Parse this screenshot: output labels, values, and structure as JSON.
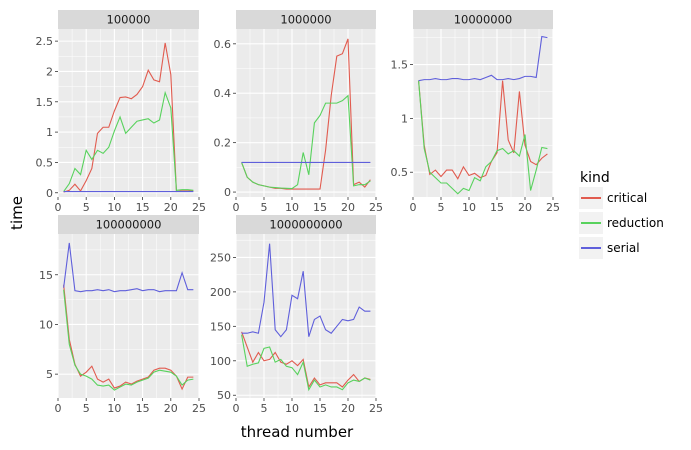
{
  "chart_data": {
    "type": "line",
    "xlabel": "thread number",
    "ylabel": "time",
    "legend": {
      "title": "kind",
      "position": "right",
      "entries": [
        {
          "name": "critical",
          "color": "#e15b4f"
        },
        {
          "name": "reduction",
          "color": "#58d25d"
        },
        {
          "name": "serial",
          "color": "#5f5fdb"
        }
      ]
    },
    "x_ticks": [
      0,
      5,
      10,
      15,
      20,
      25
    ],
    "xlim": [
      0,
      25
    ],
    "panels": [
      {
        "title": "100000",
        "ylim": [
          -0.07,
          2.7
        ],
        "y_ticks": [
          0,
          0.5,
          1,
          1.5,
          2,
          2.5
        ],
        "y_tick_labels": [
          "0",
          "0.5",
          "1",
          "1.5",
          "2",
          "2.5"
        ],
        "series": [
          {
            "name": "critical",
            "x": [
              1,
              2,
              3,
              4,
              5,
              6,
              7,
              8,
              9,
              10,
              11,
              12,
              13,
              14,
              15,
              16,
              17,
              18,
              19,
              20,
              21,
              22,
              23,
              24
            ],
            "y": [
              0.01,
              0.04,
              0.14,
              0.03,
              0.2,
              0.4,
              0.98,
              1.08,
              1.08,
              1.35,
              1.57,
              1.58,
              1.55,
              1.62,
              1.75,
              2.02,
              1.86,
              1.83,
              2.47,
              1.95,
              0.02,
              0.03,
              0.03,
              0.03
            ]
          },
          {
            "name": "reduction",
            "x": [
              1,
              2,
              3,
              4,
              5,
              6,
              7,
              8,
              9,
              10,
              11,
              12,
              13,
              14,
              15,
              16,
              17,
              18,
              19,
              20,
              21,
              22,
              23,
              24
            ],
            "y": [
              0.02,
              0.15,
              0.4,
              0.3,
              0.7,
              0.55,
              0.7,
              0.65,
              0.75,
              1.02,
              1.25,
              0.98,
              1.08,
              1.18,
              1.2,
              1.22,
              1.15,
              1.2,
              1.65,
              1.4,
              0.04,
              0.05,
              0.05,
              0.04
            ]
          },
          {
            "name": "serial",
            "x": [
              1,
              24
            ],
            "y": [
              0.02,
              0.02
            ]
          }
        ]
      },
      {
        "title": "1000000",
        "ylim": [
          -0.02,
          0.66
        ],
        "y_ticks": [
          0,
          0.2,
          0.4,
          0.6
        ],
        "y_tick_labels": [
          "0",
          "0.2",
          "0.4",
          "0.6"
        ],
        "series": [
          {
            "name": "critical",
            "x": [
              1,
              2,
              3,
              4,
              5,
              6,
              7,
              8,
              9,
              10,
              11,
              12,
              13,
              14,
              15,
              16,
              17,
              18,
              19,
              20,
              21,
              22,
              23,
              24
            ],
            "y": [
              0.12,
              0.06,
              0.04,
              0.03,
              0.025,
              0.02,
              0.015,
              0.015,
              0.012,
              0.012,
              0.012,
              0.012,
              0.012,
              0.012,
              0.012,
              0.17,
              0.39,
              0.55,
              0.56,
              0.62,
              0.03,
              0.04,
              0.02,
              0.05
            ]
          },
          {
            "name": "reduction",
            "x": [
              1,
              2,
              3,
              4,
              5,
              6,
              7,
              8,
              9,
              10,
              11,
              12,
              13,
              14,
              15,
              16,
              17,
              18,
              19,
              20,
              21,
              22,
              23,
              24
            ],
            "y": [
              0.12,
              0.06,
              0.04,
              0.03,
              0.025,
              0.02,
              0.018,
              0.016,
              0.015,
              0.014,
              0.03,
              0.16,
              0.07,
              0.28,
              0.31,
              0.36,
              0.36,
              0.36,
              0.37,
              0.39,
              0.025,
              0.03,
              0.03,
              0.045
            ]
          },
          {
            "name": "serial",
            "x": [
              1,
              24
            ],
            "y": [
              0.12,
              0.12
            ]
          }
        ]
      },
      {
        "title": "10000000",
        "ylim": [
          0.27,
          1.83
        ],
        "y_ticks": [
          0.5,
          1,
          1.5
        ],
        "y_tick_labels": [
          "0.5",
          "1",
          "1.5"
        ],
        "series": [
          {
            "name": "critical",
            "x": [
              1,
              2,
              3,
              4,
              5,
              6,
              7,
              8,
              9,
              10,
              11,
              12,
              13,
              14,
              15,
              16,
              17,
              18,
              19,
              20,
              21,
              22,
              23,
              24
            ],
            "y": [
              1.35,
              0.75,
              0.48,
              0.52,
              0.46,
              0.52,
              0.52,
              0.44,
              0.55,
              0.47,
              0.49,
              0.45,
              0.47,
              0.6,
              0.68,
              1.35,
              0.8,
              0.68,
              1.25,
              0.75,
              0.6,
              0.57,
              0.63,
              0.67
            ]
          },
          {
            "name": "reduction",
            "x": [
              1,
              2,
              3,
              4,
              5,
              6,
              7,
              8,
              9,
              10,
              11,
              12,
              13,
              14,
              15,
              16,
              17,
              18,
              19,
              20,
              21,
              22,
              23,
              24
            ],
            "y": [
              1.35,
              0.72,
              0.5,
              0.45,
              0.4,
              0.4,
              0.35,
              0.3,
              0.35,
              0.33,
              0.45,
              0.42,
              0.55,
              0.6,
              0.7,
              0.72,
              0.67,
              0.7,
              0.65,
              0.85,
              0.33,
              0.52,
              0.73,
              0.72
            ]
          },
          {
            "name": "serial",
            "x": [
              1,
              2,
              3,
              4,
              5,
              6,
              7,
              8,
              9,
              10,
              11,
              12,
              13,
              14,
              15,
              16,
              17,
              18,
              19,
              20,
              21,
              22,
              23,
              24
            ],
            "y": [
              1.35,
              1.36,
              1.36,
              1.37,
              1.36,
              1.36,
              1.37,
              1.37,
              1.36,
              1.36,
              1.37,
              1.36,
              1.38,
              1.4,
              1.36,
              1.36,
              1.37,
              1.36,
              1.37,
              1.39,
              1.39,
              1.38,
              1.76,
              1.75
            ]
          }
        ]
      },
      {
        "title": "100000000",
        "ylim": [
          2.6,
          19.1
        ],
        "y_ticks": [
          5,
          10,
          15
        ],
        "y_tick_labels": [
          "5",
          "10",
          "15"
        ],
        "series": [
          {
            "name": "critical",
            "x": [
              1,
              2,
              3,
              4,
              5,
              6,
              7,
              8,
              9,
              10,
              11,
              12,
              13,
              14,
              15,
              16,
              17,
              18,
              19,
              20,
              21,
              22,
              23,
              24
            ],
            "y": [
              14.0,
              8.5,
              6.0,
              4.8,
              5.2,
              5.8,
              4.5,
              4.2,
              4.5,
              3.6,
              3.8,
              4.2,
              4.0,
              4.3,
              4.5,
              4.7,
              5.4,
              5.6,
              5.6,
              5.4,
              4.8,
              3.5,
              4.7,
              4.7
            ]
          },
          {
            "name": "reduction",
            "x": [
              1,
              2,
              3,
              4,
              5,
              6,
              7,
              8,
              9,
              10,
              11,
              12,
              13,
              14,
              15,
              16,
              17,
              18,
              19,
              20,
              21,
              22,
              23,
              24
            ],
            "y": [
              13.5,
              8.0,
              5.9,
              5.0,
              4.8,
              4.5,
              3.9,
              3.8,
              3.9,
              3.4,
              3.7,
              4.0,
              3.9,
              4.2,
              4.4,
              4.6,
              5.2,
              5.4,
              5.3,
              5.2,
              4.8,
              3.9,
              4.4,
              4.5
            ]
          },
          {
            "name": "serial",
            "x": [
              1,
              2,
              3,
              4,
              5,
              6,
              7,
              8,
              9,
              10,
              11,
              12,
              13,
              14,
              15,
              16,
              17,
              18,
              19,
              20,
              21,
              22,
              23,
              24
            ],
            "y": [
              13.7,
              18.2,
              13.4,
              13.3,
              13.4,
              13.4,
              13.5,
              13.4,
              13.5,
              13.3,
              13.4,
              13.4,
              13.5,
              13.6,
              13.4,
              13.5,
              13.5,
              13.3,
              13.4,
              13.4,
              13.4,
              15.2,
              13.5,
              13.5
            ]
          }
        ]
      },
      {
        "title": "1000000000",
        "ylim": [
          46,
          284
        ],
        "y_ticks": [
          50,
          100,
          150,
          200,
          250
        ],
        "y_tick_labels": [
          "50",
          "100",
          "150",
          "200",
          "250"
        ],
        "series": [
          {
            "name": "critical",
            "x": [
              1,
              2,
              3,
              4,
              5,
              6,
              7,
              8,
              9,
              10,
              11,
              12,
              13,
              14,
              15,
              16,
              17,
              18,
              19,
              20,
              21,
              22,
              23,
              24
            ],
            "y": [
              142,
              120,
              98,
              112,
              100,
              102,
              112,
              98,
              95,
              100,
              93,
              102,
              62,
              75,
              65,
              68,
              68,
              68,
              62,
              72,
              80,
              70,
              75,
              73
            ]
          },
          {
            "name": "reduction",
            "x": [
              1,
              2,
              3,
              4,
              5,
              6,
              7,
              8,
              9,
              10,
              11,
              12,
              13,
              14,
              15,
              16,
              17,
              18,
              19,
              20,
              21,
              22,
              23,
              24
            ],
            "y": [
              138,
              92,
              95,
              97,
              118,
              120,
              98,
              102,
              92,
              90,
              80,
              98,
              58,
              72,
              62,
              65,
              62,
              62,
              58,
              68,
              72,
              70,
              75,
              72
            ]
          },
          {
            "name": "serial",
            "x": [
              1,
              2,
              3,
              4,
              5,
              6,
              7,
              8,
              9,
              10,
              11,
              12,
              13,
              14,
              15,
              16,
              17,
              18,
              19,
              20,
              21,
              22,
              23,
              24
            ],
            "y": [
              140,
              140,
              142,
              140,
              185,
              270,
              145,
              135,
              145,
              195,
              190,
              230,
              135,
              160,
              165,
              145,
              140,
              150,
              160,
              158,
              160,
              178,
              172,
              172
            ]
          }
        ]
      }
    ]
  }
}
